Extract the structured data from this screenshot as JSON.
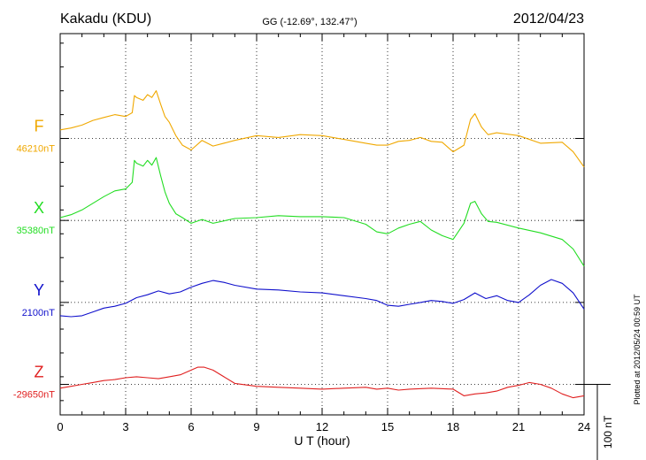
{
  "header": {
    "station": "Kakadu (KDU)",
    "coords": "GG (-12.69°, 132.47°)",
    "date": "2012/04/23"
  },
  "footer": {
    "plotted": "Plotted at 2012/05/24 00:59 UT"
  },
  "chart_data": {
    "type": "line",
    "xlabel": "U T (hour)",
    "xlim": [
      0,
      24
    ],
    "xticks": [
      "0",
      "3",
      "6",
      "9",
      "12",
      "15",
      "18",
      "21",
      "24"
    ],
    "ylim": [
      -290,
      110
    ],
    "scale_bar": {
      "label": "100 nT",
      "value": 100
    },
    "grid": "dotted horizontal baselines and vertical hour lines",
    "series": [
      {
        "name": "F",
        "baseline": "46210nT",
        "color": "#f0a800",
        "offset": 0,
        "x": [
          0,
          0.5,
          1,
          1.5,
          2,
          2.5,
          3,
          3.3,
          3.4,
          3.5,
          3.8,
          4,
          4.2,
          4.4,
          4.6,
          4.8,
          5.0,
          5.3,
          5.6,
          6.0,
          6.5,
          7.0,
          8.0,
          9.0,
          10.0,
          11.0,
          12.0,
          13.0,
          14.0,
          14.5,
          15.0,
          15.5,
          16.0,
          16.5,
          17.0,
          17.5,
          18.0,
          18.5,
          18.8,
          19.0,
          19.3,
          19.6,
          20.0,
          21.0,
          22.0,
          23.0,
          23.5,
          24.0
        ],
        "values": [
          9,
          11,
          14,
          19,
          22,
          25,
          23,
          27,
          45,
          43,
          40,
          46,
          43,
          50,
          36,
          23,
          17,
          3,
          -7,
          -12,
          -2,
          -8,
          -2,
          3,
          1,
          4,
          3,
          -1,
          -5,
          -7,
          -7,
          -3,
          -2,
          1,
          -3,
          -4,
          -14,
          -7,
          20,
          26,
          12,
          4,
          6,
          3,
          -5,
          -4,
          -14,
          -30
        ]
      },
      {
        "name": "X",
        "baseline": "35380nT",
        "color": "#22dd22",
        "offset": -86,
        "x": [
          0,
          0.5,
          1,
          1.5,
          2,
          2.5,
          3,
          3.3,
          3.4,
          3.5,
          3.8,
          4,
          4.2,
          4.4,
          4.6,
          4.8,
          5.0,
          5.3,
          5.6,
          6.0,
          6.5,
          7.0,
          8.0,
          9.0,
          10.0,
          11.0,
          12.0,
          13.0,
          14.0,
          14.5,
          15.0,
          15.5,
          16.0,
          16.5,
          17.0,
          17.5,
          18.0,
          18.5,
          18.8,
          19.0,
          19.3,
          19.6,
          20.0,
          21.0,
          22.0,
          23.0,
          23.5,
          24.0
        ],
        "values": [
          3,
          6,
          11,
          18,
          25,
          31,
          33,
          40,
          63,
          60,
          57,
          63,
          58,
          66,
          47,
          30,
          18,
          7,
          3,
          -3,
          1,
          -3,
          2,
          3,
          5,
          4,
          4,
          3,
          -4,
          -12,
          -14,
          -8,
          -4,
          -1,
          -10,
          -16,
          -20,
          -3,
          18,
          20,
          7,
          -1,
          -2,
          -8,
          -13,
          -20,
          -30,
          -48
        ]
      },
      {
        "name": "Y",
        "baseline": "2100nT",
        "color": "#1010cc",
        "offset": -172,
        "x": [
          0,
          0.5,
          1,
          1.5,
          2,
          2.5,
          3,
          3.5,
          4,
          4.5,
          5.0,
          5.5,
          6.0,
          6.5,
          7.0,
          7.5,
          8.0,
          9.0,
          10.0,
          11.0,
          12.0,
          13.0,
          14.0,
          14.5,
          15.0,
          15.5,
          16.0,
          16.5,
          17.0,
          17.5,
          18.0,
          18.5,
          19.0,
          19.5,
          20.0,
          20.5,
          21.0,
          21.5,
          22.0,
          22.5,
          23.0,
          23.5,
          24.0
        ],
        "values": [
          -14,
          -15,
          -14,
          -10,
          -6,
          -4,
          -1,
          5,
          8,
          12,
          9,
          11,
          16,
          20,
          23,
          21,
          18,
          14,
          13,
          11,
          10,
          7,
          4,
          2,
          -3,
          -4,
          -2,
          0,
          2,
          1,
          -1,
          3,
          10,
          4,
          7,
          2,
          0,
          8,
          18,
          24,
          20,
          10,
          -7
        ]
      },
      {
        "name": "Z",
        "baseline": "-29650nT",
        "color": "#e02020",
        "offset": -258,
        "x": [
          0,
          0.5,
          1,
          1.5,
          2,
          2.5,
          3,
          3.5,
          4,
          4.5,
          5.0,
          5.5,
          6.0,
          6.3,
          6.6,
          7.0,
          7.5,
          8.0,
          9.0,
          10.0,
          11.0,
          12.0,
          13.0,
          14.0,
          14.5,
          15.0,
          15.5,
          16.0,
          17.0,
          18.0,
          18.5,
          19.0,
          19.5,
          20.0,
          20.5,
          21.0,
          21.5,
          22.0,
          22.5,
          23.0,
          23.5,
          24.0
        ],
        "values": [
          -4,
          -2,
          0,
          2,
          4,
          5,
          7,
          8,
          7,
          6,
          8,
          10,
          15,
          18,
          18,
          15,
          8,
          1,
          -2,
          -3,
          -4,
          -5,
          -4,
          -3,
          -5,
          -4,
          -6,
          -5,
          -4,
          -5,
          -12,
          -10,
          -9,
          -7,
          -3,
          -1,
          2,
          0,
          -4,
          -10,
          -14,
          -12
        ]
      }
    ]
  }
}
